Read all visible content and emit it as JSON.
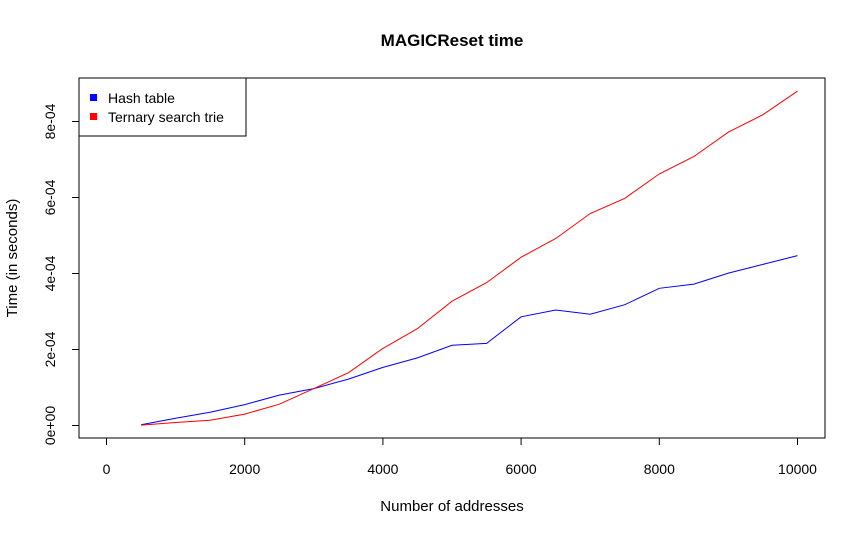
{
  "chart_data": {
    "type": "line",
    "title": "MAGICReset time",
    "xlabel": "Number of addresses",
    "ylabel": "Time (in seconds)",
    "xlim": [
      0,
      10000
    ],
    "ylim": [
      0,
      0.0009
    ],
    "x_ticks": [
      0,
      2000,
      4000,
      6000,
      8000,
      10000
    ],
    "x_tick_labels": [
      "0",
      "2000",
      "4000",
      "6000",
      "8000",
      "10000"
    ],
    "y_ticks": [
      0,
      0.0002,
      0.0004,
      0.0006,
      0.0008
    ],
    "y_tick_labels": [
      "0e+00",
      "2e-04",
      "4e-04",
      "6e-04",
      "8e-04"
    ],
    "grid": false,
    "legend_position": "top-left",
    "x": [
      500,
      1000,
      1500,
      2000,
      2500,
      3000,
      3500,
      4000,
      4500,
      5000,
      5500,
      6000,
      6500,
      7000,
      7500,
      8000,
      8500,
      9000,
      9500,
      10000
    ],
    "series": [
      {
        "name": "Hash table",
        "color": "#0000ff",
        "values": [
          2e-06,
          1.9e-05,
          3.5e-05,
          5.5e-05,
          8e-05,
          9.7e-05,
          0.000122,
          0.000153,
          0.000178,
          0.000211,
          0.000216,
          0.000286,
          0.000304,
          0.000293,
          0.000318,
          0.000361,
          0.000372,
          0.000401,
          0.000424,
          0.000447
        ]
      },
      {
        "name": "Ternary search trie",
        "color": "#ff0000",
        "values": [
          1e-06,
          8e-06,
          1.4e-05,
          3e-05,
          5.6e-05,
          9.7e-05,
          0.000139,
          0.000203,
          0.000255,
          0.000327,
          0.000376,
          0.000443,
          0.000492,
          0.000558,
          0.000598,
          0.000662,
          0.000708,
          0.000772,
          0.000818,
          0.00088
        ]
      }
    ]
  }
}
